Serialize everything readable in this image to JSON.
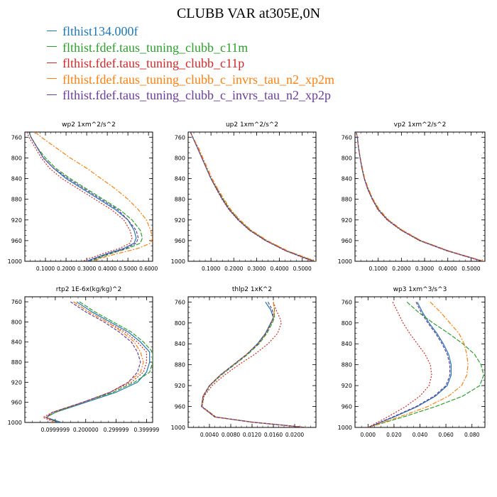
{
  "title": "CLUBB VAR at305E,0N",
  "colors": {
    "series": [
      "#1f77b4",
      "#2ca02c",
      "#d62728",
      "#ff7f0e",
      "#6a3d9a"
    ]
  },
  "legend": [
    "flthist134.000f",
    "flthist.fdef.taus_tuning_clubb_c11m",
    "flthist.fdef.taus_tuning_clubb_c11p",
    "flthist.fdef.taus_tuning_clubb_c_invrs_tau_n2_xp2m",
    "flthist.fdef.taus_tuning_clubb_c_invrs_tau_n2_xp2p"
  ],
  "chart_data": [
    {
      "type": "line",
      "title": "wp2  1xm^2/s^2",
      "xlim": [
        0,
        0.62
      ],
      "ylim": [
        750,
        1000
      ],
      "y_reversed": true,
      "xticks": [
        "0.1000",
        "0.2000",
        "0.3000",
        "0.4000",
        "0.5000",
        "0.6000"
      ],
      "xtick_values": [
        0.1,
        0.2,
        0.3,
        0.4,
        0.5,
        0.6
      ],
      "yticks": [
        "760",
        "800",
        "840",
        "880",
        "920",
        "960",
        "1000"
      ],
      "ytick_values": [
        760,
        800,
        840,
        880,
        920,
        960,
        1000
      ],
      "y": [
        750,
        760,
        780,
        800,
        820,
        840,
        860,
        880,
        900,
        920,
        940,
        955,
        965,
        975,
        985,
        995,
        1000
      ],
      "series": [
        {
          "values": [
            0.02,
            0.03,
            0.06,
            0.09,
            0.14,
            0.2,
            0.28,
            0.36,
            0.44,
            0.5,
            0.53,
            0.54,
            0.53,
            0.48,
            0.4,
            0.33,
            0.3
          ]
        },
        {
          "values": [
            0.02,
            0.03,
            0.06,
            0.1,
            0.15,
            0.22,
            0.3,
            0.38,
            0.46,
            0.52,
            0.56,
            0.57,
            0.56,
            0.5,
            0.42,
            0.35,
            0.32
          ]
        },
        {
          "values": [
            0.01,
            0.02,
            0.05,
            0.08,
            0.12,
            0.18,
            0.26,
            0.34,
            0.42,
            0.48,
            0.51,
            0.52,
            0.51,
            0.46,
            0.38,
            0.31,
            0.28
          ]
        },
        {
          "values": [
            0.05,
            0.08,
            0.15,
            0.22,
            0.3,
            0.37,
            0.44,
            0.5,
            0.55,
            0.59,
            0.61,
            0.62,
            0.61,
            0.55,
            0.45,
            0.36,
            0.33
          ]
        },
        {
          "values": [
            0.02,
            0.03,
            0.06,
            0.09,
            0.14,
            0.21,
            0.29,
            0.37,
            0.45,
            0.5,
            0.54,
            0.55,
            0.54,
            0.49,
            0.41,
            0.34,
            0.31
          ]
        }
      ]
    },
    {
      "type": "line",
      "title": "up2  1xm^2/s^2",
      "xlim": [
        0,
        0.56
      ],
      "ylim": [
        750,
        1000
      ],
      "y_reversed": true,
      "xticks": [
        "0.1000",
        "0.2000",
        "0.3000",
        "0.4000",
        "0.5000"
      ],
      "xtick_values": [
        0.1,
        0.2,
        0.3,
        0.4,
        0.5
      ],
      "yticks": [
        "760",
        "800",
        "840",
        "880",
        "920",
        "960",
        "1000"
      ],
      "ytick_values": [
        760,
        800,
        840,
        880,
        920,
        960,
        1000
      ],
      "y": [
        750,
        760,
        780,
        800,
        820,
        840,
        860,
        880,
        900,
        920,
        940,
        960,
        980,
        1000
      ],
      "series": [
        {
          "values": [
            0.01,
            0.02,
            0.04,
            0.06,
            0.08,
            0.1,
            0.125,
            0.15,
            0.18,
            0.22,
            0.27,
            0.34,
            0.43,
            0.55
          ]
        },
        {
          "values": [
            0.01,
            0.02,
            0.04,
            0.06,
            0.08,
            0.1,
            0.127,
            0.153,
            0.183,
            0.223,
            0.273,
            0.343,
            0.433,
            0.555
          ]
        },
        {
          "values": [
            0.01,
            0.02,
            0.04,
            0.06,
            0.08,
            0.1,
            0.123,
            0.148,
            0.178,
            0.218,
            0.268,
            0.338,
            0.428,
            0.545
          ]
        },
        {
          "values": [
            0.01,
            0.02,
            0.045,
            0.065,
            0.085,
            0.105,
            0.13,
            0.157,
            0.187,
            0.227,
            0.277,
            0.347,
            0.437,
            0.56
          ]
        },
        {
          "values": [
            0.01,
            0.02,
            0.04,
            0.06,
            0.08,
            0.1,
            0.125,
            0.15,
            0.18,
            0.22,
            0.27,
            0.34,
            0.43,
            0.55
          ]
        }
      ]
    },
    {
      "type": "line",
      "title": "vp2  1xm^2/s^2",
      "xlim": [
        0,
        0.56
      ],
      "ylim": [
        750,
        1000
      ],
      "y_reversed": true,
      "xticks": [
        "0.1000",
        "0.2000",
        "0.3000",
        "0.4000",
        "0.5000"
      ],
      "xtick_values": [
        0.1,
        0.2,
        0.3,
        0.4,
        0.5
      ],
      "yticks": [
        "760",
        "800",
        "840",
        "880",
        "920",
        "960",
        "1000"
      ],
      "ytick_values": [
        760,
        800,
        840,
        880,
        920,
        960,
        1000
      ],
      "y": [
        750,
        760,
        780,
        800,
        820,
        840,
        860,
        880,
        900,
        920,
        940,
        960,
        980,
        1000
      ],
      "series": [
        {
          "values": [
            0.005,
            0.01,
            0.015,
            0.022,
            0.03,
            0.04,
            0.055,
            0.075,
            0.1,
            0.14,
            0.2,
            0.28,
            0.4,
            0.55
          ]
        },
        {
          "values": [
            0.005,
            0.01,
            0.015,
            0.022,
            0.03,
            0.04,
            0.056,
            0.076,
            0.102,
            0.142,
            0.202,
            0.283,
            0.403,
            0.553
          ]
        },
        {
          "values": [
            0.005,
            0.01,
            0.015,
            0.022,
            0.03,
            0.04,
            0.054,
            0.074,
            0.098,
            0.138,
            0.198,
            0.277,
            0.397,
            0.547
          ]
        },
        {
          "values": [
            0.005,
            0.01,
            0.016,
            0.023,
            0.032,
            0.042,
            0.058,
            0.078,
            0.105,
            0.145,
            0.205,
            0.285,
            0.405,
            0.556
          ]
        },
        {
          "values": [
            0.005,
            0.01,
            0.015,
            0.022,
            0.03,
            0.04,
            0.055,
            0.075,
            0.1,
            0.14,
            0.2,
            0.28,
            0.4,
            0.55
          ]
        }
      ]
    },
    {
      "type": "line",
      "title": "rtp2  1E-6x(kg/kg)^2",
      "xlim": [
        0,
        0.42
      ],
      "ylim": [
        750,
        1000
      ],
      "y_reversed": true,
      "xticks": [
        "0.0999999",
        "0.200000",
        "0.299999",
        "0.399999"
      ],
      "xtick_values": [
        0.1,
        0.2,
        0.3,
        0.4
      ],
      "yticks": [
        "760",
        "800",
        "840",
        "880",
        "920",
        "960",
        "1000"
      ],
      "ytick_values": [
        760,
        800,
        840,
        880,
        920,
        960,
        1000
      ],
      "y": [
        760,
        780,
        800,
        820,
        840,
        860,
        880,
        900,
        920,
        940,
        960,
        980,
        990,
        1000
      ],
      "series": [
        {
          "values": [
            0.17,
            0.22,
            0.28,
            0.34,
            0.38,
            0.41,
            0.41,
            0.4,
            0.37,
            0.3,
            0.2,
            0.1,
            0.07,
            0.12
          ]
        },
        {
          "values": [
            0.18,
            0.23,
            0.29,
            0.35,
            0.39,
            0.42,
            0.42,
            0.41,
            0.36,
            0.29,
            0.19,
            0.1,
            0.07,
            0.11
          ]
        },
        {
          "values": [
            0.16,
            0.21,
            0.27,
            0.33,
            0.37,
            0.4,
            0.4,
            0.39,
            0.35,
            0.28,
            0.19,
            0.09,
            0.06,
            0.1
          ]
        },
        {
          "values": [
            0.16,
            0.21,
            0.27,
            0.32,
            0.36,
            0.38,
            0.39,
            0.38,
            0.34,
            0.28,
            0.19,
            0.09,
            0.07,
            0.1
          ]
        },
        {
          "values": [
            0.15,
            0.2,
            0.26,
            0.31,
            0.35,
            0.37,
            0.38,
            0.37,
            0.34,
            0.28,
            0.19,
            0.09,
            0.07,
            0.11
          ]
        }
      ]
    },
    {
      "type": "line",
      "title": "thlp2  1xK^2",
      "xlim": [
        0,
        0.024
      ],
      "ylim": [
        750,
        1000
      ],
      "y_reversed": true,
      "xticks": [
        "0.0040",
        "0.0080",
        "0.0120",
        "0.0160",
        "0.0200"
      ],
      "xtick_values": [
        0.004,
        0.008,
        0.012,
        0.016,
        0.02
      ],
      "yticks": [
        "760",
        "800",
        "840",
        "880",
        "920",
        "960",
        "1000"
      ],
      "ytick_values": [
        760,
        800,
        840,
        880,
        920,
        960,
        1000
      ],
      "y": [
        760,
        775,
        790,
        800,
        820,
        840,
        860,
        880,
        900,
        920,
        940,
        960,
        980,
        990,
        1000
      ],
      "series": [
        {
          "values": [
            0.0145,
            0.0155,
            0.016,
            0.0155,
            0.0145,
            0.013,
            0.011,
            0.0085,
            0.006,
            0.004,
            0.0028,
            0.0025,
            0.005,
            0.012,
            0.022
          ]
        },
        {
          "values": [
            0.016,
            0.0162,
            0.0162,
            0.0158,
            0.0148,
            0.0133,
            0.0112,
            0.0087,
            0.0062,
            0.0041,
            0.0029,
            0.0026,
            0.0052,
            0.0122,
            0.0222
          ]
        },
        {
          "values": [
            0.016,
            0.0165,
            0.0172,
            0.0175,
            0.0168,
            0.015,
            0.0125,
            0.0095,
            0.0068,
            0.0045,
            0.003,
            0.0026,
            0.0052,
            0.0122,
            0.0222
          ]
        },
        {
          "values": [
            0.016,
            0.0162,
            0.016,
            0.0156,
            0.0146,
            0.0131,
            0.011,
            0.0085,
            0.006,
            0.004,
            0.0028,
            0.0025,
            0.005,
            0.012,
            0.022
          ]
        },
        {
          "values": [
            0.015,
            0.0158,
            0.016,
            0.0156,
            0.0146,
            0.0131,
            0.011,
            0.0085,
            0.006,
            0.004,
            0.0028,
            0.0025,
            0.005,
            0.012,
            0.022
          ]
        }
      ]
    },
    {
      "type": "line",
      "title": "wp3  1xm^3/s^3",
      "xlim": [
        -0.01,
        0.09
      ],
      "ylim": [
        750,
        1000
      ],
      "y_reversed": true,
      "xticks": [
        "0.000",
        "0.020",
        "0.040",
        "0.060",
        "0.080"
      ],
      "xtick_values": [
        0,
        0.02,
        0.04,
        0.06,
        0.08
      ],
      "yticks": [
        "760",
        "800",
        "840",
        "880",
        "920",
        "960",
        "1000"
      ],
      "ytick_values": [
        760,
        800,
        840,
        880,
        920,
        960,
        1000
      ],
      "y": [
        760,
        780,
        800,
        820,
        840,
        860,
        880,
        900,
        920,
        940,
        960,
        980,
        1000
      ],
      "series": [
        {
          "values": [
            0.038,
            0.042,
            0.047,
            0.053,
            0.058,
            0.062,
            0.064,
            0.064,
            0.061,
            0.052,
            0.038,
            0.02,
            0.0
          ]
        },
        {
          "values": [
            0.03,
            0.039,
            0.05,
            0.062,
            0.073,
            0.082,
            0.087,
            0.089,
            0.086,
            0.073,
            0.052,
            0.027,
            0.0
          ]
        },
        {
          "values": [
            0.019,
            0.023,
            0.027,
            0.032,
            0.038,
            0.044,
            0.048,
            0.049,
            0.047,
            0.04,
            0.029,
            0.015,
            0.0
          ]
        },
        {
          "values": [
            0.048,
            0.056,
            0.063,
            0.07,
            0.074,
            0.076,
            0.077,
            0.076,
            0.072,
            0.062,
            0.046,
            0.024,
            0.0
          ]
        },
        {
          "values": [
            0.037,
            0.041,
            0.046,
            0.052,
            0.057,
            0.061,
            0.063,
            0.063,
            0.06,
            0.051,
            0.037,
            0.019,
            0.0
          ]
        }
      ]
    }
  ]
}
